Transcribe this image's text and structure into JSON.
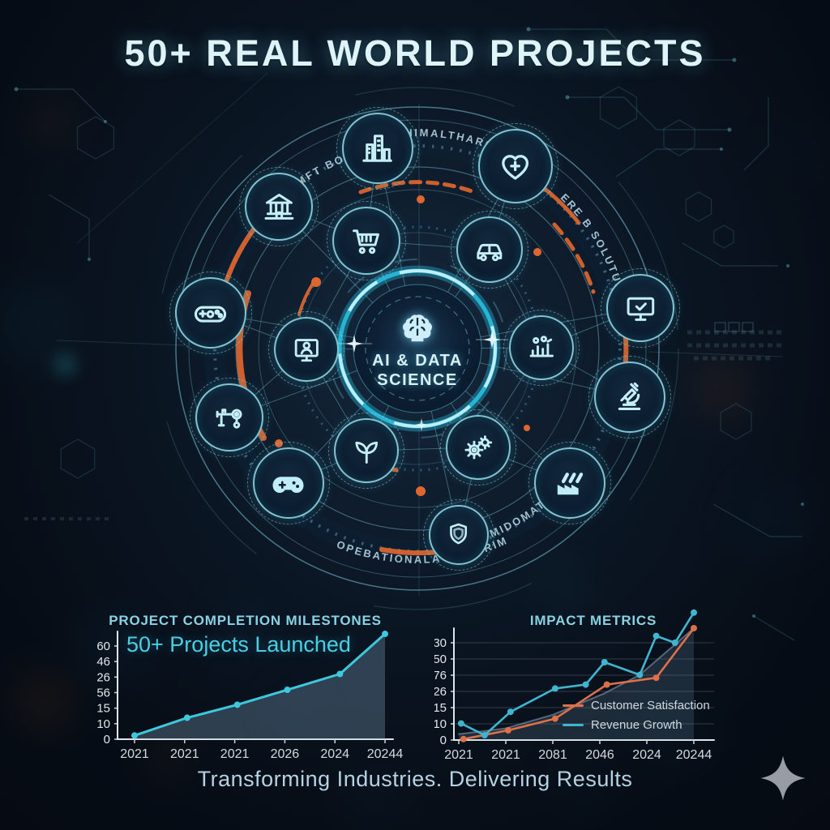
{
  "poster": {
    "title": "50+ REAL WORLD PROJECTS",
    "tagline": "Transforming Industries. Delivering Results"
  },
  "hub": {
    "icon": "brain-icon",
    "line1": "AI & DATA",
    "line2": "SCIENCE"
  },
  "ring_labels": {
    "top_left": "MFT BOLATIF",
    "top": "THIMALTHARCE AI",
    "right": "ERE B SOLUTUIRE",
    "bottom_left": "OPEBATIONALA EFFEIRIM",
    "bottom_right": "MIDOMATION"
  },
  "nodes": [
    {
      "icon": "city-buildings-icon"
    },
    {
      "icon": "heart-plus-icon"
    },
    {
      "icon": "bank-icon"
    },
    {
      "icon": "shopping-cart-icon"
    },
    {
      "icon": "car-icon"
    },
    {
      "icon": "monitor-check-icon"
    },
    {
      "icon": "game-controller-outline-icon"
    },
    {
      "icon": "webcam-person-icon"
    },
    {
      "icon": "analytics-people-icon"
    },
    {
      "icon": "microscope-icon"
    },
    {
      "icon": "robot-arm-icon"
    },
    {
      "icon": "plant-leaf-icon"
    },
    {
      "icon": "gears-icon"
    },
    {
      "icon": "gamepad-solid-icon"
    },
    {
      "icon": "factory-icon"
    },
    {
      "icon": "shield-icon"
    }
  ],
  "chart_data": [
    {
      "type": "area",
      "title": "PROJECT COMPLETION MILESTONES",
      "annotation": "50+ Projects Launched",
      "y_ticks": [
        "60",
        "46",
        "26",
        "56",
        "15",
        "10",
        "0"
      ],
      "x_ticks": [
        "2021",
        "2021",
        "2021",
        "2026",
        "2024",
        "20244"
      ],
      "grid": false,
      "series": [
        {
          "name": "Projects Launched",
          "color": "#3cc9de",
          "width": 3,
          "fill": "rgba(128,165,192,0.32)",
          "marker": true,
          "x_pct": [
            0,
            21,
            41,
            61,
            82,
            100
          ],
          "y_pct": [
            4,
            23,
            37,
            53,
            70,
            113
          ]
        }
      ]
    },
    {
      "type": "line",
      "title": "IMPACT METRICS",
      "y_ticks": [
        "30",
        "50",
        "76",
        "26",
        "15",
        "10",
        "0"
      ],
      "x_ticks": [
        "2021",
        "2021",
        "2081",
        "2046",
        "2024",
        "20244"
      ],
      "grid": true,
      "legend": [
        "Customer Satisfaction",
        "Revenue Growth"
      ],
      "series": [
        {
          "name": "Trend",
          "color": "rgba(150,175,195,0.5)",
          "width": 2,
          "fill": "rgba(115,155,185,0.2)",
          "marker": false,
          "x_pct": [
            0,
            20,
            40,
            62,
            77,
            100
          ],
          "y_pct": [
            6,
            12,
            26,
            48,
            67,
            115
          ]
        },
        {
          "name": "Customer Satisfaction",
          "color": "#dd7048",
          "width": 2.6,
          "marker": true,
          "x_pct": [
            2,
            21,
            41,
            63,
            84,
            100
          ],
          "y_pct": [
            1,
            10,
            22,
            57,
            64,
            115
          ]
        },
        {
          "name": "Revenue Growth",
          "color": "#3fb6cf",
          "width": 2.6,
          "marker": true,
          "x_pct": [
            1,
            11,
            22,
            41,
            54,
            62,
            77,
            84,
            92,
            100
          ],
          "y_pct": [
            17,
            5,
            29,
            53,
            57,
            80,
            67,
            107,
            100,
            131
          ]
        }
      ]
    }
  ],
  "watermark": {
    "icon": "sparkle-icon"
  },
  "colors": {
    "title_cyan": "#def4f9",
    "ring_cyan": "#7fdce8",
    "accent_orange": "#e0662f",
    "hub_glow": "#27bfe0",
    "milestones_line": "#3cc9de",
    "satisfaction_orange": "#dd7048",
    "growth_teal": "#3fb6cf"
  }
}
